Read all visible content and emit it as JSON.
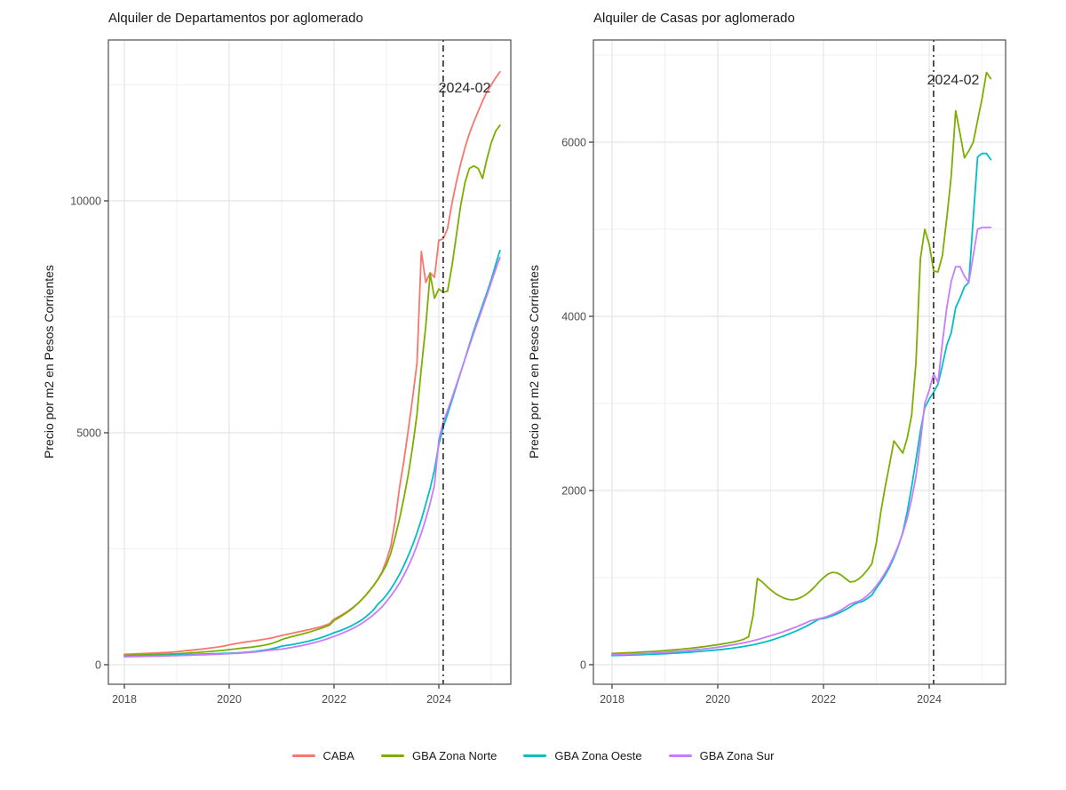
{
  "legend": {
    "items": [
      {
        "label": "CABA",
        "color": "#F8766D"
      },
      {
        "label": "GBA Zona Norte",
        "color": "#7CAE00"
      },
      {
        "label": "GBA Zona Oeste",
        "color": "#00BFC4"
      },
      {
        "label": "GBA Zona Sur",
        "color": "#C77CFF"
      }
    ]
  },
  "chart_data": [
    {
      "type": "line",
      "title": "Alquiler de Departamentos por aglomerado",
      "xlabel": "",
      "ylabel": "Precio por m2 en Pesos Corrientes",
      "x_start": "2018-01",
      "x_step_months": 1,
      "x_ticks": [
        2018,
        2020,
        2022,
        2024
      ],
      "x_minor_ticks": [
        2019,
        2021,
        2023,
        2025
      ],
      "y_ticks": [
        0,
        5000,
        10000
      ],
      "y_minor_ticks": [
        2500,
        7500,
        12500
      ],
      "ylim": [
        0,
        13470
      ],
      "grid": true,
      "annotation": {
        "label": "2024-02",
        "x": 2024.0833
      },
      "series": [
        {
          "name": "CABA",
          "color": "#F8766D",
          "values": [
            225,
            228,
            232,
            236,
            240,
            244,
            248,
            252,
            257,
            262,
            267,
            272,
            280,
            290,
            300,
            310,
            320,
            330,
            340,
            352,
            364,
            376,
            390,
            406,
            425,
            445,
            462,
            478,
            492,
            505,
            518,
            532,
            548,
            565,
            582,
            605,
            630,
            650,
            670,
            690,
            710,
            730,
            750,
            772,
            795,
            820,
            850,
            885,
            980,
            1030,
            1085,
            1145,
            1210,
            1285,
            1370,
            1465,
            1575,
            1700,
            1840,
            2000,
            2250,
            2550,
            3100,
            3830,
            4400,
            5060,
            5750,
            6500,
            8910,
            8240,
            8450,
            8350,
            9150,
            9180,
            9400,
            9950,
            10400,
            10800,
            11150,
            11450,
            11700,
            11930,
            12150,
            12350,
            12500,
            12650,
            12780
          ]
        },
        {
          "name": "GBA Zona Norte",
          "color": "#7CAE00",
          "values": [
            200,
            203,
            206,
            209,
            212,
            215,
            218,
            221,
            224,
            227,
            230,
            234,
            238,
            243,
            248,
            254,
            260,
            266,
            273,
            280,
            288,
            296,
            305,
            315,
            325,
            336,
            347,
            358,
            368,
            378,
            390,
            404,
            420,
            440,
            465,
            500,
            540,
            570,
            596,
            620,
            644,
            668,
            694,
            722,
            752,
            784,
            818,
            855,
            950,
            1005,
            1065,
            1130,
            1200,
            1280,
            1370,
            1470,
            1580,
            1700,
            1830,
            1980,
            2150,
            2400,
            2750,
            3150,
            3600,
            4100,
            4700,
            5400,
            6400,
            7300,
            8430,
            7900,
            8100,
            8030,
            8050,
            8600,
            9250,
            9900,
            10400,
            10700,
            10750,
            10700,
            10480,
            10900,
            11250,
            11500,
            11630
          ]
        },
        {
          "name": "GBA Zona Oeste",
          "color": "#00BFC4",
          "values": [
            185,
            187,
            189,
            191,
            193,
            195,
            197,
            199,
            201,
            203,
            205,
            208,
            211,
            214,
            217,
            220,
            223,
            226,
            229,
            232,
            235,
            238,
            241,
            244,
            248,
            252,
            257,
            263,
            270,
            278,
            288,
            300,
            313,
            328,
            348,
            372,
            400,
            413,
            428,
            444,
            462,
            482,
            504,
            528,
            554,
            582,
            615,
            650,
            690,
            720,
            755,
            795,
            840,
            890,
            945,
            1010,
            1090,
            1180,
            1300,
            1390,
            1500,
            1630,
            1780,
            1950,
            2140,
            2350,
            2580,
            2840,
            3130,
            3460,
            3800,
            4200,
            4750,
            5115,
            5400,
            5700,
            6000,
            6300,
            6600,
            6900,
            7200,
            7480,
            7750,
            8020,
            8300,
            8620,
            8930
          ]
        },
        {
          "name": "GBA Zona Sur",
          "color": "#C77CFF",
          "values": [
            170,
            172,
            174,
            176,
            178,
            180,
            182,
            184,
            186,
            188,
            190,
            193,
            196,
            199,
            202,
            205,
            208,
            211,
            214,
            217,
            220,
            224,
            228,
            232,
            237,
            241,
            246,
            252,
            259,
            267,
            276,
            286,
            297,
            309,
            320,
            330,
            335,
            350,
            366,
            383,
            401,
            420,
            441,
            464,
            489,
            516,
            545,
            576,
            610,
            645,
            683,
            724,
            768,
            816,
            870,
            930,
            998,
            1074,
            1158,
            1250,
            1360,
            1480,
            1610,
            1760,
            1930,
            2120,
            2330,
            2570,
            2840,
            3140,
            3480,
            3870,
            4850,
            5230,
            5480,
            5750,
            6030,
            6310,
            6590,
            6870,
            7150,
            7420,
            7690,
            7960,
            8240,
            8520,
            8780
          ]
        }
      ]
    },
    {
      "type": "line",
      "title": "Alquiler de Casas por aglomerado",
      "xlabel": "",
      "ylabel": "Precio por m2 en Pesos Corrientes",
      "x_start": "2018-01",
      "x_step_months": 1,
      "x_ticks": [
        2018,
        2020,
        2022,
        2024
      ],
      "x_minor_ticks": [
        2019,
        2021,
        2023,
        2025
      ],
      "y_ticks": [
        0,
        2000,
        4000,
        6000
      ],
      "y_minor_ticks": [
        1000,
        3000,
        5000,
        7000
      ],
      "ylim": [
        0,
        7170
      ],
      "grid": true,
      "annotation": {
        "label": "2024-02",
        "x": 2024.0833
      },
      "series": [
        {
          "name": "GBA Zona Norte",
          "color": "#7CAE00",
          "values": [
            130,
            132,
            134,
            136,
            138,
            140,
            143,
            146,
            149,
            152,
            155,
            158,
            162,
            166,
            170,
            175,
            180,
            185,
            190,
            196,
            202,
            208,
            215,
            222,
            230,
            238,
            246,
            255,
            265,
            278,
            295,
            320,
            560,
            990,
            955,
            905,
            860,
            820,
            790,
            765,
            750,
            745,
            755,
            775,
            805,
            845,
            895,
            950,
            1000,
            1040,
            1060,
            1055,
            1030,
            990,
            950,
            955,
            985,
            1030,
            1090,
            1160,
            1400,
            1750,
            2040,
            2300,
            2570,
            2500,
            2430,
            2600,
            2860,
            3470,
            4660,
            5000,
            4830,
            4520,
            4510,
            4700,
            5130,
            5610,
            6360,
            6100,
            5820,
            5900,
            6000,
            6250,
            6500,
            6800,
            6730
          ]
        },
        {
          "name": "GBA Zona Oeste",
          "color": "#00BFC4",
          "values": [
            105,
            106,
            107,
            108,
            110,
            112,
            113,
            115,
            117,
            119,
            121,
            123,
            126,
            129,
            132,
            135,
            138,
            141,
            145,
            149,
            153,
            157,
            161,
            166,
            171,
            176,
            182,
            188,
            195,
            202,
            210,
            219,
            229,
            240,
            252,
            265,
            280,
            296,
            313,
            331,
            350,
            370,
            392,
            415,
            440,
            466,
            494,
            524,
            530,
            545,
            562,
            582,
            605,
            632,
            662,
            695,
            715,
            730,
            762,
            800,
            880,
            950,
            1030,
            1120,
            1230,
            1360,
            1520,
            1750,
            2040,
            2350,
            2680,
            2950,
            3050,
            3130,
            3220,
            3440,
            3670,
            3810,
            4100,
            4210,
            4340,
            4390,
            5130,
            5830,
            5870,
            5870,
            5800
          ]
        },
        {
          "name": "GBA Zona Sur",
          "color": "#C77CFF",
          "values": [
            115,
            116,
            118,
            120,
            122,
            124,
            126,
            128,
            130,
            133,
            136,
            139,
            142,
            145,
            149,
            153,
            157,
            161,
            166,
            171,
            176,
            182,
            188,
            194,
            201,
            208,
            216,
            224,
            233,
            242,
            252,
            263,
            275,
            288,
            302,
            317,
            333,
            348,
            364,
            381,
            399,
            418,
            438,
            459,
            481,
            504,
            515,
            528,
            540,
            558,
            578,
            600,
            628,
            660,
            695,
            715,
            730,
            755,
            795,
            845,
            905,
            975,
            1055,
            1145,
            1250,
            1370,
            1510,
            1680,
            1900,
            2160,
            2550,
            3000,
            3150,
            3340,
            3240,
            3700,
            4100,
            4400,
            4570,
            4570,
            4460,
            4390,
            4700,
            5000,
            5020,
            5020,
            5020
          ]
        }
      ]
    }
  ],
  "style": {
    "grid_major_color": "#E4E4E4",
    "grid_minor_color": "#F1F1F1",
    "panel_border_color": "#4D4D4D",
    "tick_color": "#333333",
    "tick_label_color": "#4D4D4D",
    "vline_color": "#1a1a1a"
  }
}
